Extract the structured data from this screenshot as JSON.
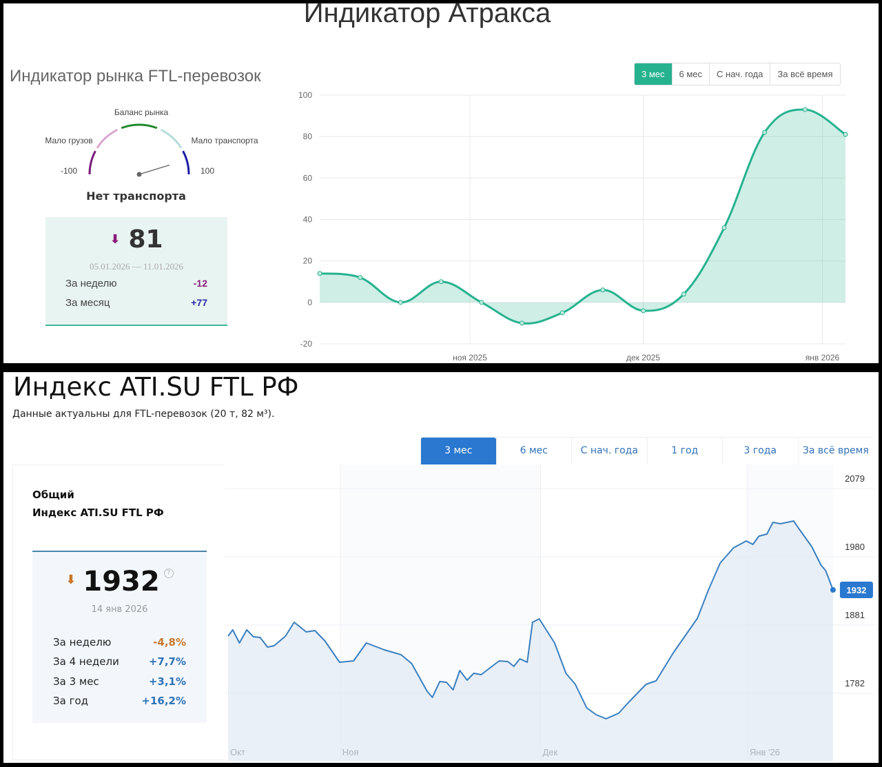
{
  "top": {
    "title": "Индикатор Атракса",
    "subtitle": "Индикатор рынка FTL-перевозок",
    "gauge": {
      "label_top": "Баланс рынка",
      "label_left": "Мало грузов",
      "label_right": "Мало транспорта",
      "min_label": "-100",
      "max_label": "100",
      "value": 81,
      "min": -100,
      "max": 100,
      "colors": [
        "#7a1a7a",
        "#d8a6cf",
        "#1f8a2a",
        "#b5ded6",
        "#1a1aa8"
      ]
    },
    "status": "Нет транспорта",
    "card": {
      "value": "81",
      "arrow": "⬇",
      "period": "05.01.2026 — 11.01.2026",
      "rows": [
        {
          "label": "За неделю",
          "value": "-12",
          "color": "#8a1a7a"
        },
        {
          "label": "За месяц",
          "value": "+77",
          "color": "#2a2aa8"
        }
      ]
    },
    "range_buttons": [
      "3 мес",
      "6 мес",
      "С нач. года",
      "За всё время"
    ],
    "active_range": 0,
    "accent": "#26b28f"
  },
  "bottom": {
    "title": "Индекс ATI.SU FTL РФ",
    "description": "Данные актуальны для FTL-перевозок (20 т, 82 м³).",
    "range_buttons": [
      "3 мес",
      "6 мес",
      "С нач. года",
      "1 год",
      "3 года",
      "За всё время"
    ],
    "active_range": 0,
    "heading_line1": "Общий",
    "heading_line2": "Индекс ATI.SU FTL РФ",
    "card": {
      "value": "1932",
      "arrow": "⬇",
      "help": "?",
      "date": "14 янв 2026",
      "rows": [
        {
          "label": "За неделю",
          "value": "-4,8%",
          "color": "#c9782a"
        },
        {
          "label": "За 4 недели",
          "value": "+7,7%",
          "color": "#2f72b8"
        },
        {
          "label": "За 3 мес",
          "value": "+3,1%",
          "color": "#2f72b8"
        },
        {
          "label": "За год",
          "value": "+16,2%",
          "color": "#2f72b8"
        }
      ]
    },
    "accent": "#2a78cf"
  },
  "chart_data": [
    {
      "type": "area",
      "title": "Индикатор рынка FTL-перевозок",
      "xlabel": "",
      "ylabel": "",
      "x": [
        "2025-10-06",
        "2025-10-13",
        "2025-10-20",
        "2025-10-27",
        "2025-11-03",
        "2025-11-10",
        "2025-11-17",
        "2025-11-24",
        "2025-12-01",
        "2025-12-08",
        "2025-12-15",
        "2025-12-22",
        "2025-12-29",
        "2026-01-05"
      ],
      "values": [
        14,
        12,
        0,
        10,
        0,
        -10,
        -5,
        6,
        -4,
        4,
        36,
        82,
        93,
        81
      ],
      "ylim": [
        -20,
        100
      ],
      "yticks": [
        "100",
        "80",
        "60",
        "40",
        "20",
        "0",
        "-20"
      ],
      "ytick_values": [
        100,
        80,
        60,
        40,
        20,
        0,
        -20
      ],
      "xticks": [
        {
          "label": "ноя 2025",
          "date": "2025-11-01"
        },
        {
          "label": "дек 2025",
          "date": "2025-12-01"
        },
        {
          "label": "янв 2026",
          "date": "2026-01-01"
        }
      ],
      "grid": true,
      "color": "#26b28f"
    },
    {
      "type": "area",
      "title": "Индекс ATI.SU FTL РФ",
      "xunit": "days since 1 Oct 2025",
      "x": [
        14.2,
        14.9,
        15.9,
        17,
        18,
        19,
        20.1,
        21.1,
        22.8,
        24.1,
        25.9,
        27.2,
        28.7,
        30.9,
        33,
        34.9,
        37.6,
        40.1,
        41.7,
        44,
        44.8,
        45.9,
        46.9,
        47.9,
        48.9,
        50,
        51,
        52.1,
        54.8,
        56.1,
        57,
        57.9,
        59,
        59.8,
        60.8,
        63.1,
        64.8,
        66.2,
        67.9,
        69.3,
        70.8,
        72.7,
        74.1,
        76.8,
        78.3,
        80.9,
        84.5,
        86.1,
        87.9,
        89.9,
        91.8,
        92.8,
        93.7,
        94.9,
        95.8,
        96.9,
        98.9,
        99.9,
        101.6,
        103,
        103.7,
        104.8
      ],
      "values": [
        1865,
        1874,
        1855,
        1874,
        1864,
        1863,
        1849,
        1851,
        1865,
        1885,
        1871,
        1873,
        1858,
        1827,
        1829,
        1855,
        1845,
        1838,
        1825,
        1785,
        1776,
        1799,
        1798,
        1787,
        1815,
        1801,
        1811,
        1809,
        1829,
        1828,
        1821,
        1832,
        1827,
        1885,
        1890,
        1855,
        1811,
        1795,
        1761,
        1751,
        1745,
        1753,
        1768,
        1795,
        1800,
        1841,
        1891,
        1931,
        1971,
        1993,
        2003,
        1998,
        2010,
        2013,
        2030,
        2028,
        2032,
        2018,
        1995,
        1968,
        1960,
        1932
      ],
      "last_value_label": "1932",
      "yticks": [
        "2079",
        "1980",
        "1881",
        "1782"
      ],
      "ytick_values": [
        2079,
        1980,
        1881,
        1782
      ],
      "xticks": [
        {
          "label": "Окт",
          "day": 14.2
        },
        {
          "label": "Ноя",
          "day": 31
        },
        {
          "label": "Дек",
          "day": 61
        },
        {
          "label": "Янв '26",
          "day": 92
        }
      ],
      "grid": true,
      "color": "#3a7fc0"
    }
  ]
}
